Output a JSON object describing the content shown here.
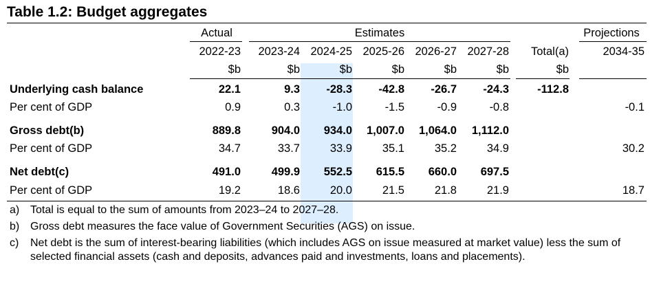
{
  "title": "Table 1.2: Budget aggregates",
  "groups": {
    "actual": "Actual",
    "estimates": "Estimates",
    "projections": "Projections"
  },
  "years": [
    "2022-23",
    "2023-24",
    "2024-25",
    "2025-26",
    "2026-27",
    "2027-28",
    "Total(a)",
    "2034-35"
  ],
  "units": [
    "$b",
    "$b",
    "$b",
    "$b",
    "$b",
    "$b",
    "$b"
  ],
  "rows": [
    {
      "label": "Underlying cash balance",
      "bold": true,
      "values": [
        "22.1",
        "9.3",
        "-28.3",
        "-42.8",
        "-26.7",
        "-24.3",
        "-112.8",
        ""
      ]
    },
    {
      "label": "Per cent of GDP",
      "bold": false,
      "values": [
        "0.9",
        "0.3",
        "-1.0",
        "-1.5",
        "-0.9",
        "-0.8",
        "",
        "-0.1"
      ]
    },
    {
      "label": "Gross debt(b)",
      "bold": true,
      "values": [
        "889.8",
        "904.0",
        "934.0",
        "1,007.0",
        "1,064.0",
        "1,112.0",
        "",
        ""
      ]
    },
    {
      "label": "Per cent of GDP",
      "bold": false,
      "values": [
        "34.7",
        "33.7",
        "33.9",
        "35.1",
        "35.2",
        "34.9",
        "",
        "30.2"
      ]
    },
    {
      "label": "Net debt(c)",
      "bold": true,
      "values": [
        "491.0",
        "499.9",
        "552.5",
        "615.5",
        "660.0",
        "697.5",
        "",
        ""
      ]
    },
    {
      "label": "Per cent of GDP",
      "bold": false,
      "values": [
        "19.2",
        "18.6",
        "20.0",
        "21.5",
        "21.8",
        "21.9",
        "",
        "18.7"
      ]
    }
  ],
  "notes": [
    {
      "letter": "a)",
      "text": "Total is equal to the sum of amounts from 2023–24 to 2027–28."
    },
    {
      "letter": "b)",
      "text": "Gross debt measures the face value of Government Securities (AGS) on issue."
    },
    {
      "letter": "c)",
      "text": "Net debt is the sum of interest-bearing liabilities (which includes AGS on issue measured at market value) less the sum of selected financial assets (cash and deposits, advances paid and investments, loans and placements)."
    }
  ]
}
